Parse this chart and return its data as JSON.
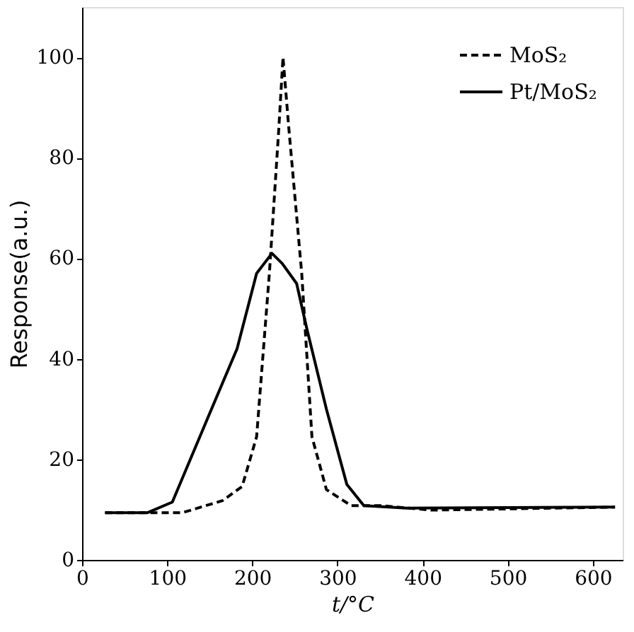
{
  "chart_data": {
    "type": "line",
    "xlabel": "t/°C",
    "ylabel": "Response(a.u.)",
    "xlim": [
      0,
      635
    ],
    "ylim": [
      0,
      110
    ],
    "xticks": [
      0,
      100,
      200,
      300,
      400,
      500,
      600
    ],
    "yticks": [
      0,
      20,
      40,
      60,
      80,
      100
    ],
    "grid": false,
    "legend": "top right",
    "marker": "none",
    "series": [
      {
        "name": "MoS₂",
        "color": "#000000",
        "line_style": "dashed",
        "x": [
          27,
          77,
          118,
          165,
          188,
          205,
          220,
          231,
          236,
          243,
          258,
          270,
          287,
          316,
          351,
          410,
          626
        ],
        "values": [
          9.4,
          9.4,
          9.4,
          11.8,
          14.6,
          24.5,
          57,
          85.6,
          100,
          85.6,
          57,
          24.5,
          14,
          10.8,
          10.8,
          9.9,
          10.5
        ]
      },
      {
        "name": "Pt/MoS₂",
        "color": "#000000",
        "line_style": "solid",
        "x": [
          27,
          77,
          106,
          147,
          182,
          205,
          223,
          235,
          252,
          264,
          287,
          311,
          331,
          381,
          626
        ],
        "values": [
          9.4,
          9.4,
          11.5,
          28,
          42,
          57,
          61,
          59,
          55,
          46,
          30,
          15,
          10.8,
          10.3,
          10.5
        ]
      }
    ]
  }
}
